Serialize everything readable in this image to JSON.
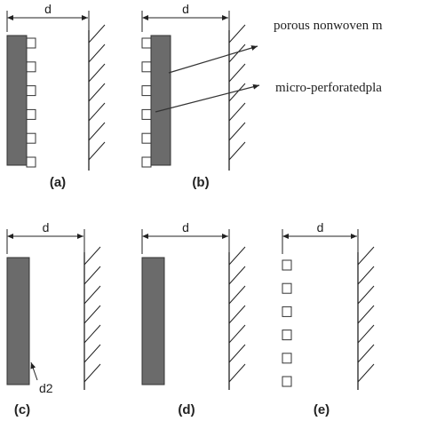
{
  "panels": [
    {
      "dimension": "d",
      "caption": "(a)"
    },
    {
      "dimension": "d",
      "caption": "(b)"
    },
    {
      "dimension": "d",
      "caption": "(c)"
    },
    {
      "dimension": "d",
      "caption": "(d)"
    },
    {
      "dimension": "d",
      "caption": "(e)"
    }
  ],
  "annotations": {
    "porous": "porous nonwoven m",
    "plate": "micro-perforatedpla",
    "thickness": "d2"
  }
}
